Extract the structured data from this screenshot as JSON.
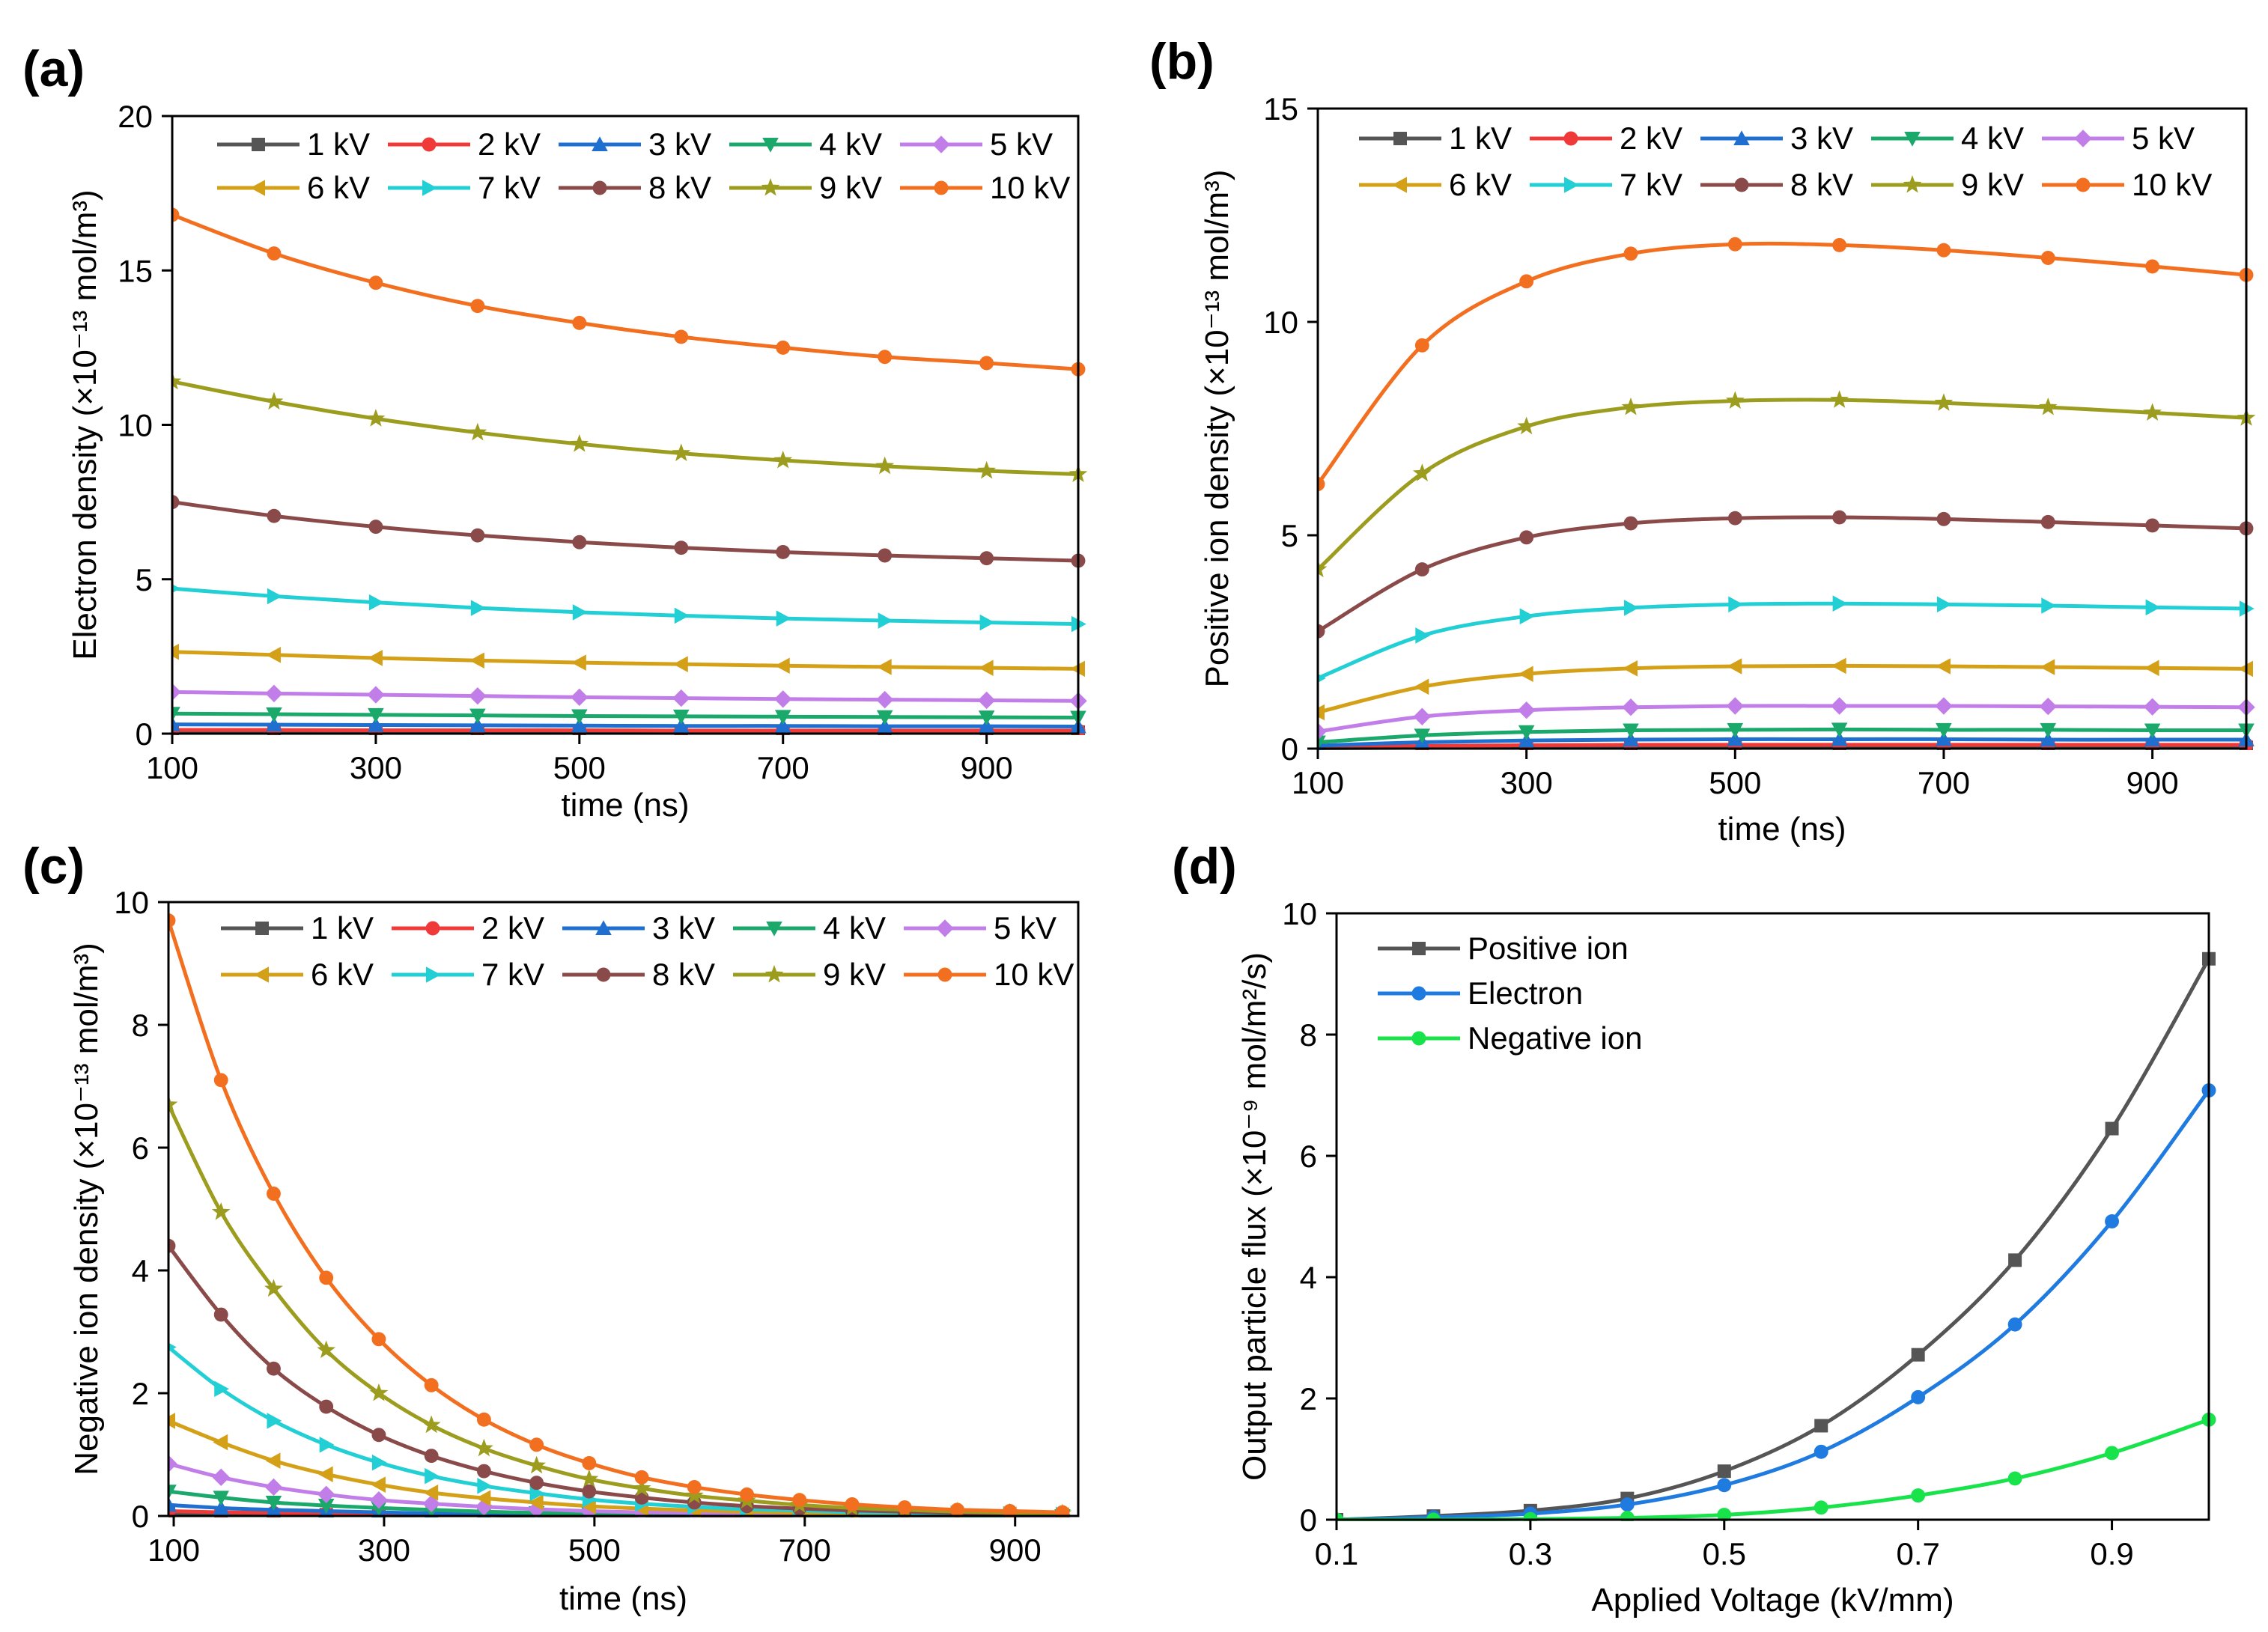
{
  "chart_data": [
    {
      "panel": "(a)",
      "type": "line",
      "xlabel": "time (ns)",
      "ylabel": "Electron density (×10⁻¹³ mol/m³)",
      "xlim": [
        100,
        990
      ],
      "ylim": [
        0,
        20
      ],
      "xticks": [
        100,
        300,
        500,
        700,
        900
      ],
      "xtick_labels": [
        "100",
        "300",
        "500",
        "700",
        "900"
      ],
      "yticks": [
        0,
        5,
        10,
        15,
        20
      ],
      "ytick_labels": [
        "0",
        "5",
        "10",
        "15",
        "20"
      ],
      "x": [
        100,
        200,
        300,
        400,
        500,
        600,
        700,
        800,
        900,
        990
      ],
      "series": [
        {
          "name": "1 kV",
          "color": "#555555",
          "marker": "square",
          "values": [
            0.05,
            0.05,
            0.05,
            0.05,
            0.05,
            0.05,
            0.05,
            0.05,
            0.05,
            0.05
          ]
        },
        {
          "name": "2 kV",
          "color": "#f03a3a",
          "marker": "circle",
          "values": [
            0.12,
            0.12,
            0.11,
            0.11,
            0.11,
            0.1,
            0.1,
            0.1,
            0.1,
            0.1
          ]
        },
        {
          "name": "3 kV",
          "color": "#1f6fd1",
          "marker": "triangle-up",
          "values": [
            0.3,
            0.29,
            0.28,
            0.27,
            0.26,
            0.25,
            0.25,
            0.24,
            0.24,
            0.23
          ]
        },
        {
          "name": "4 kV",
          "color": "#1aa86b",
          "marker": "triangle-down",
          "values": [
            0.65,
            0.63,
            0.61,
            0.59,
            0.57,
            0.56,
            0.55,
            0.54,
            0.53,
            0.52
          ]
        },
        {
          "name": "5 kV",
          "color": "#c27ee8",
          "marker": "diamond",
          "values": [
            1.35,
            1.3,
            1.26,
            1.22,
            1.18,
            1.15,
            1.12,
            1.1,
            1.08,
            1.06
          ]
        },
        {
          "name": "6 kV",
          "color": "#d4a017",
          "marker": "triangle-left",
          "values": [
            2.65,
            2.55,
            2.45,
            2.37,
            2.3,
            2.25,
            2.2,
            2.16,
            2.13,
            2.1
          ]
        },
        {
          "name": "7 kV",
          "color": "#22cfd4",
          "marker": "triangle-right",
          "values": [
            4.7,
            4.45,
            4.25,
            4.07,
            3.93,
            3.82,
            3.73,
            3.66,
            3.6,
            3.55
          ]
        },
        {
          "name": "8 kV",
          "color": "#8b4a4a",
          "marker": "circle",
          "values": [
            7.5,
            7.05,
            6.7,
            6.42,
            6.2,
            6.02,
            5.88,
            5.77,
            5.68,
            5.6
          ]
        },
        {
          "name": "9 kV",
          "color": "#9c9c1f",
          "marker": "star",
          "values": [
            11.4,
            10.75,
            10.2,
            9.75,
            9.38,
            9.08,
            8.85,
            8.66,
            8.51,
            8.4
          ]
        },
        {
          "name": "10 kV",
          "color": "#f36f20",
          "marker": "circle",
          "values": [
            16.8,
            15.55,
            14.6,
            13.85,
            13.3,
            12.85,
            12.5,
            12.2,
            12.0,
            11.8
          ]
        }
      ]
    },
    {
      "panel": "(b)",
      "type": "line",
      "xlabel": "time (ns)",
      "ylabel": "Positive ion density (×10⁻¹³ mol/m³)",
      "xlim": [
        100,
        990
      ],
      "ylim": [
        0,
        15
      ],
      "xticks": [
        100,
        300,
        500,
        700,
        900
      ],
      "xtick_labels": [
        "100",
        "300",
        "500",
        "700",
        "900"
      ],
      "yticks": [
        0,
        5,
        10,
        15
      ],
      "ytick_labels": [
        "0",
        "5",
        "10",
        "15"
      ],
      "x": [
        100,
        200,
        300,
        400,
        500,
        600,
        700,
        800,
        900,
        990
      ],
      "series": [
        {
          "name": "1 kV",
          "color": "#555555",
          "marker": "square",
          "values": [
            0.01,
            0.02,
            0.03,
            0.03,
            0.03,
            0.03,
            0.03,
            0.03,
            0.03,
            0.03
          ]
        },
        {
          "name": "2 kV",
          "color": "#f03a3a",
          "marker": "circle",
          "values": [
            0.03,
            0.06,
            0.08,
            0.09,
            0.09,
            0.09,
            0.09,
            0.09,
            0.09,
            0.09
          ]
        },
        {
          "name": "3 kV",
          "color": "#1f6fd1",
          "marker": "triangle-up",
          "values": [
            0.07,
            0.15,
            0.19,
            0.21,
            0.22,
            0.22,
            0.22,
            0.21,
            0.21,
            0.21
          ]
        },
        {
          "name": "4 kV",
          "color": "#1aa86b",
          "marker": "triangle-down",
          "values": [
            0.15,
            0.31,
            0.39,
            0.43,
            0.44,
            0.45,
            0.44,
            0.44,
            0.43,
            0.43
          ]
        },
        {
          "name": "5 kV",
          "color": "#c27ee8",
          "marker": "diamond",
          "values": [
            0.4,
            0.75,
            0.9,
            0.97,
            1.0,
            1.0,
            1.0,
            0.99,
            0.98,
            0.97
          ]
        },
        {
          "name": "6 kV",
          "color": "#d4a017",
          "marker": "triangle-left",
          "values": [
            0.85,
            1.45,
            1.75,
            1.88,
            1.93,
            1.94,
            1.93,
            1.91,
            1.89,
            1.87
          ]
        },
        {
          "name": "7 kV",
          "color": "#22cfd4",
          "marker": "triangle-right",
          "values": [
            1.65,
            2.65,
            3.1,
            3.3,
            3.38,
            3.4,
            3.38,
            3.35,
            3.31,
            3.28
          ]
        },
        {
          "name": "8 kV",
          "color": "#8b4a4a",
          "marker": "circle",
          "values": [
            2.75,
            4.2,
            4.95,
            5.28,
            5.4,
            5.42,
            5.38,
            5.31,
            5.23,
            5.16
          ]
        },
        {
          "name": "9 kV",
          "color": "#9c9c1f",
          "marker": "star",
          "values": [
            4.2,
            6.45,
            7.55,
            8.0,
            8.15,
            8.17,
            8.1,
            8.0,
            7.87,
            7.75
          ]
        },
        {
          "name": "10 kV",
          "color": "#f36f20",
          "marker": "circle",
          "values": [
            6.2,
            9.45,
            10.95,
            11.6,
            11.82,
            11.8,
            11.68,
            11.5,
            11.3,
            11.1
          ]
        }
      ]
    },
    {
      "panel": "(c)",
      "type": "line",
      "xlabel": "time (ns)",
      "ylabel": "Negative ion density (×10⁻¹³ mol/m³)",
      "xlim": [
        95,
        960
      ],
      "ylim": [
        0,
        10
      ],
      "xticks": [
        100,
        300,
        500,
        700,
        900
      ],
      "xtick_labels": [
        "100",
        "300",
        "500",
        "700",
        "900"
      ],
      "yticks": [
        0,
        2,
        4,
        6,
        8,
        10
      ],
      "ytick_labels": [
        "0",
        "2",
        "4",
        "6",
        "8",
        "10"
      ],
      "x": [
        95,
        145,
        195,
        245,
        295,
        345,
        395,
        445,
        495,
        545,
        595,
        645,
        695,
        745,
        795,
        845,
        895,
        945
      ],
      "series": [
        {
          "name": "1 kV",
          "color": "#555555",
          "marker": "square",
          "values": [
            0.04,
            0.03,
            0.02,
            0.02,
            0.01,
            0.01,
            0.01,
            0.0,
            0.0,
            0.0,
            0.0,
            0.0,
            0.0,
            0.0,
            0.0,
            0.0,
            0.0,
            0.0
          ]
        },
        {
          "name": "2 kV",
          "color": "#f03a3a",
          "marker": "circle",
          "values": [
            0.08,
            0.06,
            0.05,
            0.04,
            0.03,
            0.02,
            0.02,
            0.01,
            0.01,
            0.01,
            0.01,
            0.0,
            0.0,
            0.0,
            0.0,
            0.0,
            0.0,
            0.0
          ]
        },
        {
          "name": "3 kV",
          "color": "#1f6fd1",
          "marker": "triangle-up",
          "values": [
            0.18,
            0.13,
            0.1,
            0.08,
            0.06,
            0.04,
            0.03,
            0.02,
            0.02,
            0.01,
            0.01,
            0.01,
            0.01,
            0.0,
            0.0,
            0.0,
            0.0,
            0.0
          ]
        },
        {
          "name": "4 kV",
          "color": "#1aa86b",
          "marker": "triangle-down",
          "values": [
            0.4,
            0.3,
            0.22,
            0.17,
            0.13,
            0.1,
            0.07,
            0.05,
            0.04,
            0.03,
            0.02,
            0.02,
            0.01,
            0.01,
            0.01,
            0.0,
            0.0,
            0.0
          ]
        },
        {
          "name": "5 kV",
          "color": "#c27ee8",
          "marker": "diamond",
          "values": [
            0.85,
            0.63,
            0.47,
            0.35,
            0.26,
            0.2,
            0.15,
            0.11,
            0.08,
            0.06,
            0.05,
            0.03,
            0.03,
            0.02,
            0.01,
            0.01,
            0.01,
            0.0
          ]
        },
        {
          "name": "6 kV",
          "color": "#d4a017",
          "marker": "triangle-left",
          "values": [
            1.55,
            1.2,
            0.9,
            0.68,
            0.51,
            0.38,
            0.29,
            0.22,
            0.16,
            0.12,
            0.09,
            0.07,
            0.05,
            0.04,
            0.03,
            0.02,
            0.02,
            0.01
          ]
        },
        {
          "name": "7 kV",
          "color": "#22cfd4",
          "marker": "triangle-right",
          "values": [
            2.75,
            2.07,
            1.55,
            1.16,
            0.87,
            0.65,
            0.49,
            0.37,
            0.27,
            0.2,
            0.15,
            0.11,
            0.09,
            0.06,
            0.05,
            0.04,
            0.03,
            0.02
          ]
        },
        {
          "name": "8 kV",
          "color": "#8b4a4a",
          "marker": "circle",
          "values": [
            4.4,
            3.28,
            2.4,
            1.78,
            1.32,
            0.98,
            0.73,
            0.54,
            0.4,
            0.3,
            0.22,
            0.16,
            0.12,
            0.09,
            0.07,
            0.05,
            0.04,
            0.03
          ]
        },
        {
          "name": "9 kV",
          "color": "#9c9c1f",
          "marker": "star",
          "values": [
            6.7,
            4.95,
            3.7,
            2.7,
            2.0,
            1.48,
            1.1,
            0.82,
            0.6,
            0.45,
            0.33,
            0.25,
            0.18,
            0.13,
            0.1,
            0.07,
            0.05,
            0.04
          ]
        },
        {
          "name": "10 kV",
          "color": "#f36f20",
          "marker": "circle",
          "values": [
            9.7,
            7.1,
            5.25,
            3.88,
            2.88,
            2.13,
            1.57,
            1.16,
            0.86,
            0.63,
            0.47,
            0.35,
            0.26,
            0.19,
            0.14,
            0.1,
            0.08,
            0.06
          ]
        }
      ]
    },
    {
      "panel": "(d)",
      "type": "line",
      "xlabel": "Applied Voltage (kV/mm)",
      "ylabel": "Output particle flux (×10⁻⁹ mol/m²/s)",
      "xlim": [
        0.1,
        1.0
      ],
      "ylim": [
        0,
        10
      ],
      "xticks": [
        0.1,
        0.3,
        0.5,
        0.7,
        0.9
      ],
      "xtick_labels": [
        "0.1",
        "0.3",
        "0.5",
        "0.7",
        "0.9"
      ],
      "yticks": [
        0,
        2,
        4,
        6,
        8,
        10
      ],
      "ytick_labels": [
        "0",
        "2",
        "4",
        "6",
        "8",
        "10"
      ],
      "x": [
        0.1,
        0.2,
        0.3,
        0.4,
        0.5,
        0.6,
        0.7,
        0.8,
        0.9,
        1.0
      ],
      "series": [
        {
          "name": "Positive ion",
          "color": "#555555",
          "marker": "square",
          "values": [
            0.0,
            0.06,
            0.15,
            0.35,
            0.8,
            1.55,
            2.72,
            4.28,
            6.45,
            9.25
          ]
        },
        {
          "name": "Electron",
          "color": "#1f7be0",
          "marker": "circle",
          "values": [
            0.0,
            0.04,
            0.1,
            0.25,
            0.57,
            1.12,
            2.02,
            3.22,
            4.92,
            7.08
          ]
        },
        {
          "name": "Negative ion",
          "color": "#19e34a",
          "marker": "circle",
          "values": [
            0.0,
            0.0,
            0.01,
            0.03,
            0.08,
            0.2,
            0.4,
            0.68,
            1.1,
            1.65
          ]
        }
      ]
    }
  ]
}
